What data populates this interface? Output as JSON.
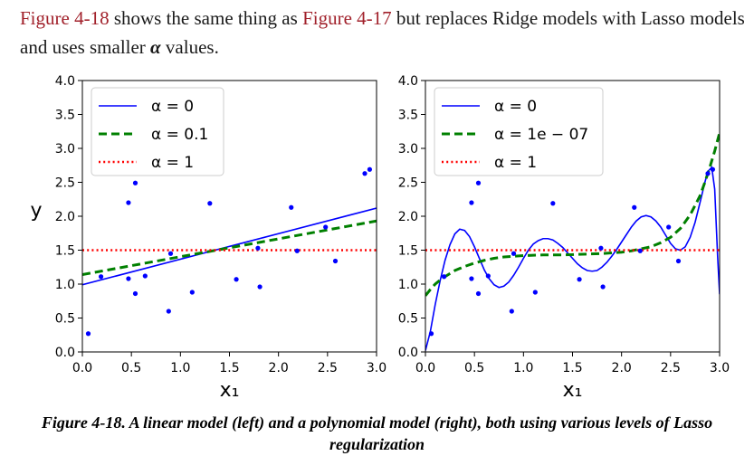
{
  "intro": {
    "ref1": "Figure 4-18",
    "text1": " shows the same thing as ",
    "ref2": "Figure 4-17",
    "text2": " but replaces Ridge models with Lasso models and uses smaller ",
    "alpha": "α",
    "text3": " values."
  },
  "caption": "Figure 4-18. A linear model (left) and a polynomial model (right), both using various levels of Lasso regularization",
  "colors": {
    "blue": "#0000ff",
    "green": "#008000",
    "red": "#ff0000",
    "link": "#a1212b"
  },
  "chart_data": [
    {
      "type": "line",
      "xlabel": "x₁",
      "ylabel": "y",
      "xlim": [
        0,
        3
      ],
      "ylim": [
        0,
        4
      ],
      "xticks": [
        "0.0",
        "0.5",
        "1.0",
        "1.5",
        "2.0",
        "2.5",
        "3.0"
      ],
      "yticks": [
        "0.0",
        "0.5",
        "1.0",
        "1.5",
        "2.0",
        "2.5",
        "3.0",
        "3.5",
        "4.0"
      ],
      "legend_position": "top-left",
      "scatter": [
        [
          0.06,
          0.27
        ],
        [
          0.19,
          1.11
        ],
        [
          0.47,
          1.08
        ],
        [
          0.47,
          2.2
        ],
        [
          0.54,
          2.49
        ],
        [
          0.54,
          0.86
        ],
        [
          0.64,
          1.12
        ],
        [
          0.88,
          0.6
        ],
        [
          0.9,
          1.45
        ],
        [
          1.12,
          0.88
        ],
        [
          1.3,
          2.19
        ],
        [
          1.57,
          1.07
        ],
        [
          1.79,
          1.53
        ],
        [
          1.81,
          0.96
        ],
        [
          2.13,
          2.13
        ],
        [
          2.19,
          1.49
        ],
        [
          2.48,
          1.84
        ],
        [
          2.58,
          1.34
        ],
        [
          2.88,
          2.63
        ],
        [
          2.93,
          2.69
        ]
      ],
      "series": [
        {
          "name": "α = 0",
          "style": "solid",
          "color": "#0000ff",
          "points": [
            [
              0,
              0.99
            ],
            [
              3,
              2.12
            ]
          ]
        },
        {
          "name": "α = 0.1",
          "style": "dashed",
          "color": "#008000",
          "points": [
            [
              0,
              1.14
            ],
            [
              3,
              1.93
            ]
          ]
        },
        {
          "name": "α = 1",
          "style": "dotted",
          "color": "#ff0000",
          "points": [
            [
              0,
              1.5
            ],
            [
              3,
              1.5
            ]
          ]
        }
      ]
    },
    {
      "type": "line",
      "xlabel": "x₁",
      "ylabel": "",
      "xlim": [
        0,
        3
      ],
      "ylim": [
        0,
        4
      ],
      "xticks": [
        "0.0",
        "0.5",
        "1.0",
        "1.5",
        "2.0",
        "2.5",
        "3.0"
      ],
      "yticks": [
        "0.0",
        "0.5",
        "1.0",
        "1.5",
        "2.0",
        "2.5",
        "3.0",
        "3.5",
        "4.0"
      ],
      "legend_position": "top-left",
      "scatter": [
        [
          0.06,
          0.27
        ],
        [
          0.19,
          1.11
        ],
        [
          0.47,
          1.08
        ],
        [
          0.47,
          2.2
        ],
        [
          0.54,
          2.49
        ],
        [
          0.54,
          0.86
        ],
        [
          0.64,
          1.12
        ],
        [
          0.88,
          0.6
        ],
        [
          0.9,
          1.45
        ],
        [
          1.12,
          0.88
        ],
        [
          1.3,
          2.19
        ],
        [
          1.57,
          1.07
        ],
        [
          1.79,
          1.53
        ],
        [
          1.81,
          0.96
        ],
        [
          2.13,
          2.13
        ],
        [
          2.19,
          1.49
        ],
        [
          2.48,
          1.84
        ],
        [
          2.58,
          1.34
        ],
        [
          2.88,
          2.63
        ],
        [
          2.93,
          2.69
        ]
      ],
      "series": [
        {
          "name": "α = 0",
          "style": "solid",
          "color": "#0000ff",
          "points": [
            [
              0,
              0.02
            ],
            [
              0.05,
              0.3
            ],
            [
              0.1,
              0.7
            ],
            [
              0.15,
              1.05
            ],
            [
              0.2,
              1.35
            ],
            [
              0.25,
              1.58
            ],
            [
              0.3,
              1.74
            ],
            [
              0.35,
              1.81
            ],
            [
              0.4,
              1.79
            ],
            [
              0.45,
              1.7
            ],
            [
              0.5,
              1.55
            ],
            [
              0.55,
              1.38
            ],
            [
              0.6,
              1.21
            ],
            [
              0.65,
              1.08
            ],
            [
              0.7,
              0.99
            ],
            [
              0.75,
              0.95
            ],
            [
              0.8,
              0.97
            ],
            [
              0.85,
              1.03
            ],
            [
              0.9,
              1.13
            ],
            [
              0.95,
              1.25
            ],
            [
              1.0,
              1.38
            ],
            [
              1.05,
              1.5
            ],
            [
              1.1,
              1.59
            ],
            [
              1.15,
              1.64
            ],
            [
              1.2,
              1.67
            ],
            [
              1.25,
              1.67
            ],
            [
              1.3,
              1.65
            ],
            [
              1.35,
              1.6
            ],
            [
              1.4,
              1.54
            ],
            [
              1.45,
              1.46
            ],
            [
              1.5,
              1.38
            ],
            [
              1.55,
              1.3
            ],
            [
              1.6,
              1.24
            ],
            [
              1.65,
              1.2
            ],
            [
              1.7,
              1.19
            ],
            [
              1.75,
              1.2
            ],
            [
              1.8,
              1.25
            ],
            [
              1.85,
              1.32
            ],
            [
              1.9,
              1.41
            ],
            [
              1.95,
              1.51
            ],
            [
              2.0,
              1.62
            ],
            [
              2.05,
              1.73
            ],
            [
              2.1,
              1.84
            ],
            [
              2.15,
              1.93
            ],
            [
              2.2,
              1.99
            ],
            [
              2.25,
              2.01
            ],
            [
              2.3,
              1.99
            ],
            [
              2.35,
              1.93
            ],
            [
              2.4,
              1.84
            ],
            [
              2.45,
              1.72
            ],
            [
              2.5,
              1.6
            ],
            [
              2.55,
              1.52
            ],
            [
              2.6,
              1.5
            ],
            [
              2.65,
              1.55
            ],
            [
              2.7,
              1.69
            ],
            [
              2.75,
              1.91
            ],
            [
              2.8,
              2.2
            ],
            [
              2.85,
              2.5
            ],
            [
              2.88,
              2.66
            ],
            [
              2.92,
              2.72
            ],
            [
              2.95,
              2.4
            ],
            [
              2.98,
              1.4
            ],
            [
              3.0,
              0.85
            ]
          ]
        },
        {
          "name": "α = 1e − 07",
          "style": "dashed",
          "color": "#008000",
          "points": [
            [
              0,
              0.83
            ],
            [
              0.05,
              0.92
            ],
            [
              0.1,
              1.0
            ],
            [
              0.15,
              1.06
            ],
            [
              0.2,
              1.11
            ],
            [
              0.3,
              1.2
            ],
            [
              0.4,
              1.26
            ],
            [
              0.5,
              1.31
            ],
            [
              0.6,
              1.35
            ],
            [
              0.7,
              1.38
            ],
            [
              0.8,
              1.4
            ],
            [
              0.9,
              1.41
            ],
            [
              1.0,
              1.42
            ],
            [
              1.2,
              1.43
            ],
            [
              1.4,
              1.43
            ],
            [
              1.6,
              1.44
            ],
            [
              1.8,
              1.45
            ],
            [
              1.9,
              1.46
            ],
            [
              2.0,
              1.47
            ],
            [
              2.1,
              1.49
            ],
            [
              2.2,
              1.52
            ],
            [
              2.3,
              1.55
            ],
            [
              2.4,
              1.61
            ],
            [
              2.5,
              1.69
            ],
            [
              2.6,
              1.82
            ],
            [
              2.7,
              2.02
            ],
            [
              2.8,
              2.3
            ],
            [
              2.85,
              2.5
            ],
            [
              2.9,
              2.72
            ],
            [
              2.95,
              2.96
            ],
            [
              3.0,
              3.23
            ]
          ]
        },
        {
          "name": "α = 1",
          "style": "dotted",
          "color": "#ff0000",
          "points": [
            [
              0,
              1.5
            ],
            [
              3,
              1.5
            ]
          ]
        }
      ]
    }
  ]
}
